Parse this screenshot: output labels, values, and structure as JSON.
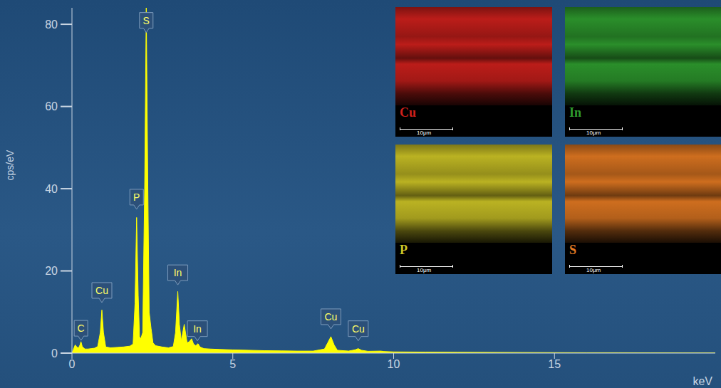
{
  "chart_data": {
    "type": "area",
    "x_label": "keV",
    "y_label": "cps/eV",
    "color": "#ffff00",
    "xlim": [
      0,
      20
    ],
    "ylim": [
      0,
      84
    ],
    "xticks": [
      0,
      5,
      10,
      15
    ],
    "yticks": [
      0,
      20,
      40,
      60,
      80
    ],
    "x": [
      0.0,
      0.1,
      0.15,
      0.2,
      0.25,
      0.28,
      0.32,
      0.4,
      0.5,
      0.6,
      0.7,
      0.8,
      0.88,
      0.93,
      0.98,
      1.05,
      1.2,
      1.4,
      1.6,
      1.8,
      1.9,
      1.96,
      2.01,
      2.06,
      2.1,
      2.14,
      2.2,
      2.26,
      2.31,
      2.36,
      2.4,
      2.46,
      2.52,
      2.6,
      2.8,
      3.0,
      3.15,
      3.22,
      3.29,
      3.34,
      3.4,
      3.49,
      3.53,
      3.58,
      3.65,
      3.72,
      3.78,
      3.85,
      3.92,
      3.98,
      4.1,
      4.3,
      4.6,
      5.0,
      5.5,
      6.0,
      6.5,
      7.0,
      7.5,
      7.85,
      7.95,
      8.05,
      8.15,
      8.25,
      8.6,
      8.8,
      8.9,
      9.0,
      9.2,
      9.6,
      9.7,
      10,
      11,
      12,
      13,
      14,
      15,
      16,
      17,
      18,
      19,
      20
    ],
    "values": [
      0,
      2,
      1.5,
      1.2,
      2.0,
      2.8,
      1.6,
      1.0,
      1.0,
      1.1,
      1.2,
      1.6,
      5,
      10.5,
      5,
      1.5,
      1.3,
      1.4,
      1.5,
      1.7,
      2.2,
      12,
      33,
      14,
      4,
      3.5,
      5,
      40,
      84,
      40,
      10,
      6,
      2.5,
      1.8,
      1.5,
      1.3,
      1.6,
      5,
      15,
      7,
      3,
      7,
      5,
      2.5,
      2.8,
      3.5,
      2.2,
      1.8,
      2.3,
      1.5,
      1.1,
      1.0,
      0.9,
      0.8,
      0.7,
      0.6,
      0.55,
      0.5,
      0.5,
      1.0,
      2.5,
      4,
      2.0,
      0.7,
      0.5,
      0.8,
      1.1,
      0.7,
      0.45,
      0.5,
      0.4,
      0.3,
      0.25,
      0.2,
      0.18,
      0.15,
      0.12,
      0.1,
      0.1,
      0.08,
      0.06,
      0.05
    ],
    "annotations": [
      {
        "label": "C",
        "x": 0.28,
        "y": 3.1
      },
      {
        "label": "Cu",
        "x": 0.93,
        "y": 12.3
      },
      {
        "label": "P",
        "x": 2.01,
        "y": 35
      },
      {
        "label": "S",
        "x": 2.31,
        "y": 78
      },
      {
        "label": "In",
        "x": 3.29,
        "y": 16.6
      },
      {
        "label": "In",
        "x": 3.9,
        "y": 3
      },
      {
        "label": "Cu",
        "x": 8.05,
        "y": 5.9
      },
      {
        "label": "Cu",
        "x": 8.9,
        "y": 3
      }
    ],
    "insets": [
      {
        "label": "Cu",
        "color": "#d0201c",
        "scale": "10μm"
      },
      {
        "label": "In",
        "color": "#2f9e2f",
        "scale": "10μm"
      },
      {
        "label": "P",
        "color": "#cfc626",
        "scale": "10μm"
      },
      {
        "label": "S",
        "color": "#e57a22",
        "scale": "10μm"
      }
    ]
  }
}
